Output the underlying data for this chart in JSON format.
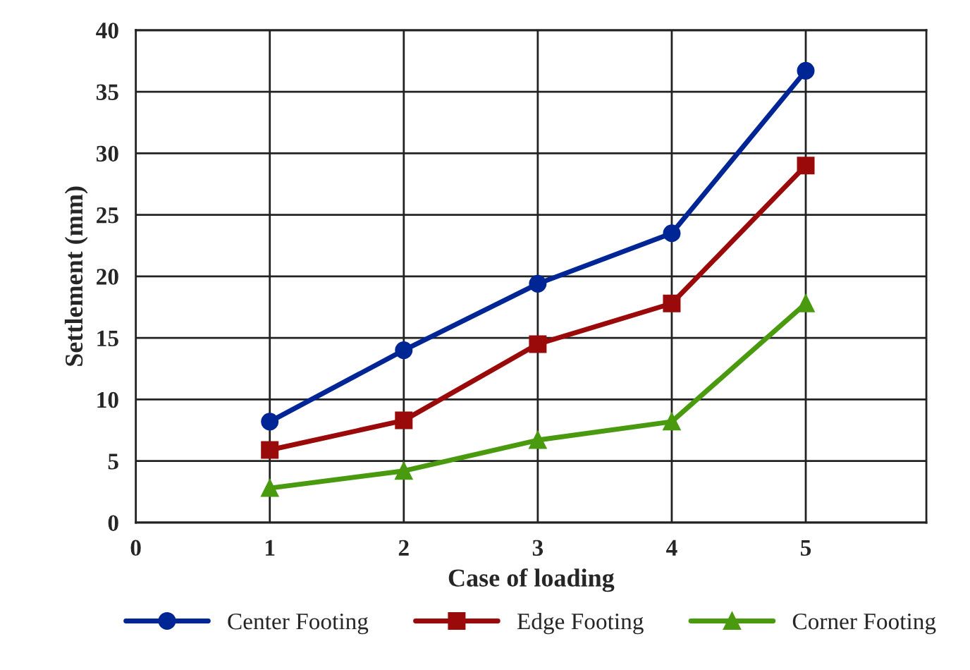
{
  "chart_data": {
    "type": "line",
    "xlabel": "Case of loading",
    "ylabel": "Settlement (mm)",
    "x": [
      1,
      2,
      3,
      4,
      5
    ],
    "series": [
      {
        "name": "Center Footing",
        "color": "#002695",
        "values": [
          8.2,
          14.0,
          19.4,
          23.5,
          36.7
        ],
        "marker": "circle"
      },
      {
        "name": "Edge Footing",
        "color": "#9b0a0a",
        "values": [
          5.9,
          8.3,
          14.5,
          17.8,
          29.0
        ],
        "marker": "square"
      },
      {
        "name": "Corner Footing",
        "color": "#4a9a10",
        "values": [
          2.8,
          4.2,
          6.7,
          8.2,
          17.8
        ],
        "marker": "triangle"
      }
    ],
    "xlim": [
      0,
      5.9
    ],
    "xticks": [
      0,
      1,
      2,
      3,
      4,
      5
    ],
    "ylim": [
      0,
      40
    ],
    "yticks": [
      0,
      5,
      10,
      15,
      20,
      25,
      30,
      35,
      40
    ],
    "grid": true,
    "legend": "bottom",
    "line_style": "solid"
  }
}
